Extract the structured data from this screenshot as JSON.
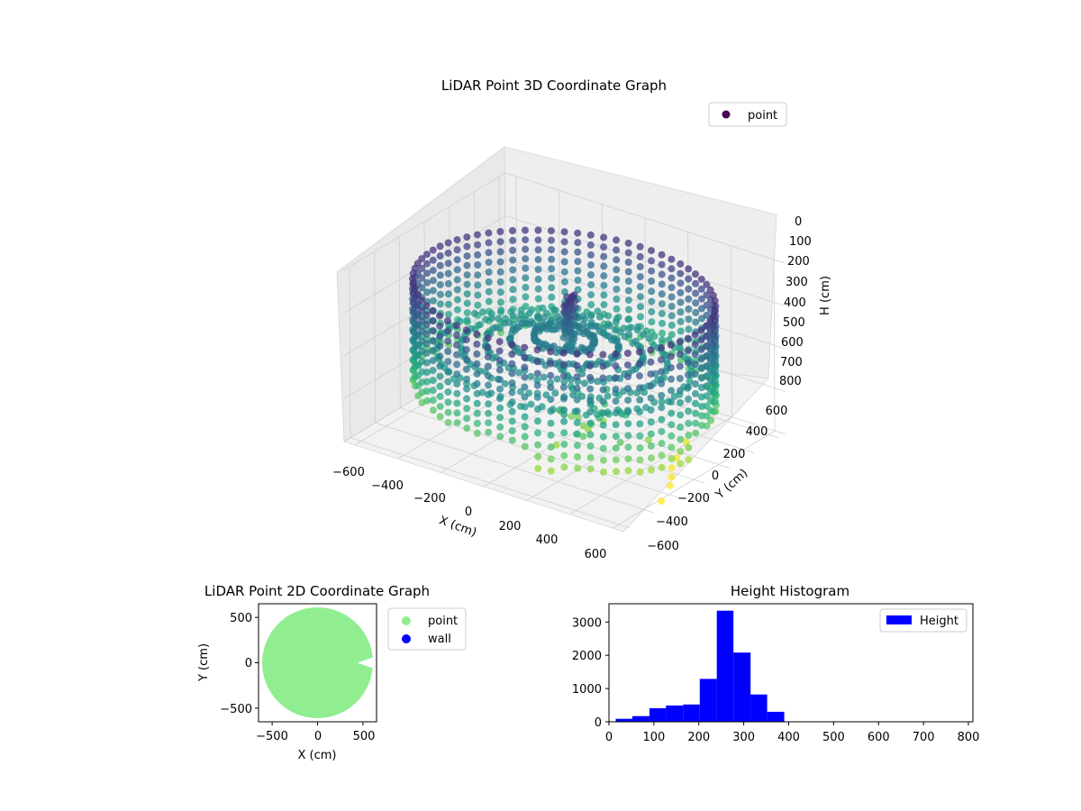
{
  "colors": {
    "viridis": [
      "#440154",
      "#482878",
      "#3e4989",
      "#31688e",
      "#26828e",
      "#1f9e89",
      "#35b779",
      "#6ece58",
      "#b5de2b",
      "#fde725"
    ],
    "floor_pane": "#f2f2f2",
    "side_pane": "#e9e9e9",
    "grid": "#d0d0d0",
    "scatter2d": "#90ee90",
    "wall": "#0000ff",
    "hist": "#0000ff"
  },
  "chart_data": [
    {
      "type": "scatter",
      "projection": "3d",
      "title": "LiDAR Point 3D Coordinate Graph",
      "xlabel": "X (cm)",
      "ylabel": "Y (cm)",
      "zlabel": "H (cm)",
      "x_ticks": [
        "−600",
        "−400",
        "−200",
        "0",
        "200",
        "400",
        "600"
      ],
      "y_ticks": [
        "−600",
        "−400",
        "−200",
        "0",
        "200",
        "400",
        "600"
      ],
      "z_ticks": [
        "0",
        "100",
        "200",
        "300",
        "400",
        "500",
        "600",
        "700",
        "800"
      ],
      "xlim": [
        -650,
        650
      ],
      "ylim": [
        -650,
        650
      ],
      "zlim": [
        800,
        0
      ],
      "z_inverted": true,
      "colormap": "viridis",
      "legend": {
        "entries": [
          "point"
        ],
        "placement": "upper right"
      },
      "ring": {
        "radius": 610,
        "center": [
          0,
          0
        ],
        "angular_steps": 72,
        "height_min": 120,
        "height_max": 560,
        "note_gap_sector_deg": [
          -70,
          0
        ]
      },
      "center_cluster": {
        "x": [
          10,
          40
        ],
        "y": [
          -30,
          30
        ],
        "h": [
          130,
          380
        ]
      },
      "outliers": [
        {
          "x": 450,
          "y": 120,
          "h": 790
        },
        {
          "x": 480,
          "y": 30,
          "h": 795
        },
        {
          "x": 520,
          "y": -40,
          "h": 800
        },
        {
          "x": 560,
          "y": -120,
          "h": 800
        },
        {
          "x": 600,
          "y": -260,
          "h": 810
        },
        {
          "x": 420,
          "y": 250,
          "h": 770
        }
      ]
    },
    {
      "type": "scatter",
      "title": "LiDAR Point 2D Coordinate Graph",
      "xlabel": "X (cm)",
      "ylabel": "Y (cm)",
      "x_ticks": [
        "−500",
        "0",
        "500"
      ],
      "y_ticks": [
        "−500",
        "0",
        "500"
      ],
      "xlim": [
        -650,
        650
      ],
      "ylim": [
        -650,
        650
      ],
      "series": [
        {
          "name": "point",
          "shape": "filled disc",
          "radius": 610,
          "center": [
            0,
            0
          ],
          "notch": {
            "x_from": 440,
            "y_from": -60,
            "y_to": 60
          }
        },
        {
          "name": "wall",
          "values": []
        }
      ],
      "legend": {
        "placement": "outside right"
      }
    },
    {
      "type": "bar",
      "subtype": "histogram",
      "title": "Height Histogram",
      "x_ticks": [
        "0",
        "100",
        "200",
        "300",
        "400",
        "500",
        "600",
        "700",
        "800"
      ],
      "y_ticks": [
        "0",
        "1000",
        "2000",
        "3000"
      ],
      "xlim": [
        0,
        810
      ],
      "ylim": [
        0,
        3550
      ],
      "bins": [
        {
          "x0": 15,
          "x1": 52,
          "count": 90
        },
        {
          "x0": 52,
          "x1": 90,
          "count": 170
        },
        {
          "x0": 90,
          "x1": 127,
          "count": 410
        },
        {
          "x0": 127,
          "x1": 165,
          "count": 490
        },
        {
          "x0": 165,
          "x1": 202,
          "count": 520
        },
        {
          "x0": 202,
          "x1": 240,
          "count": 1290
        },
        {
          "x0": 240,
          "x1": 277,
          "count": 3340
        },
        {
          "x0": 277,
          "x1": 315,
          "count": 2080
        },
        {
          "x0": 315,
          "x1": 352,
          "count": 820
        },
        {
          "x0": 352,
          "x1": 390,
          "count": 300
        },
        {
          "x0": 390,
          "x1": 427,
          "count": 5
        },
        {
          "x0": 427,
          "x1": 465,
          "count": 2
        },
        {
          "x0": 465,
          "x1": 502,
          "count": 2
        },
        {
          "x0": 502,
          "x1": 540,
          "count": 2
        },
        {
          "x0": 540,
          "x1": 577,
          "count": 2
        },
        {
          "x0": 577,
          "x1": 615,
          "count": 2
        },
        {
          "x0": 615,
          "x1": 652,
          "count": 2
        },
        {
          "x0": 652,
          "x1": 690,
          "count": 2
        },
        {
          "x0": 690,
          "x1": 727,
          "count": 2
        },
        {
          "x0": 727,
          "x1": 765,
          "count": 2
        },
        {
          "x0": 765,
          "x1": 800,
          "count": 6
        }
      ],
      "legend": {
        "entries": [
          "Height"
        ],
        "placement": "upper right"
      }
    }
  ]
}
